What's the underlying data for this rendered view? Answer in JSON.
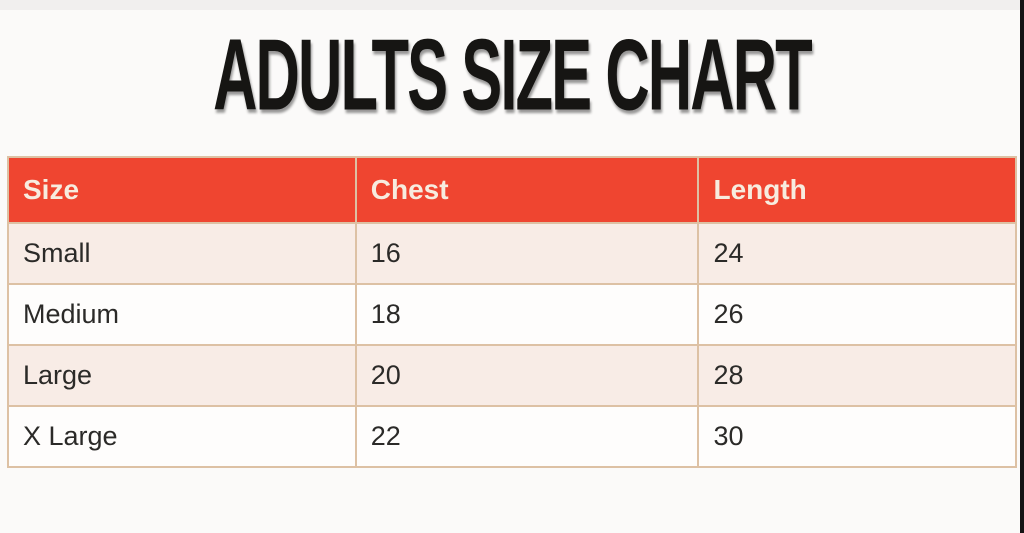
{
  "page": {
    "title": "ADULTS SIZE CHART"
  },
  "colors": {
    "header_background": "#ef4530",
    "header_text": "#f7ecdf",
    "row_odd_background": "#f8ece6",
    "row_even_background": "#fefdfc",
    "table_border": "#ddc1a4",
    "title_text": "#161513",
    "page_background": "#fbfaf9",
    "right_edge_strip": "#141414"
  },
  "table": {
    "headers": [
      "Size",
      "Chest",
      "Length"
    ],
    "rows": [
      [
        "Small",
        "16",
        "24"
      ],
      [
        "Medium",
        "18",
        "26"
      ],
      [
        "Large",
        "20",
        "28"
      ],
      [
        "X Large",
        "22",
        "30"
      ]
    ]
  },
  "chart_data": {
    "type": "table",
    "title": "ADULTS SIZE CHART",
    "columns": [
      "Size",
      "Chest",
      "Length"
    ],
    "rows": [
      {
        "size": "Small",
        "chest": 16,
        "length": 24
      },
      {
        "size": "Medium",
        "chest": 18,
        "length": 26
      },
      {
        "size": "Large",
        "chest": 20,
        "length": 28
      },
      {
        "size": "X Large",
        "chest": 22,
        "length": 30
      }
    ],
    "layout": {
      "legend": false,
      "grid": true
    }
  }
}
